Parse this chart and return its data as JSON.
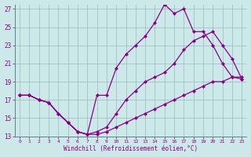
{
  "xlabel": "Windchill (Refroidissement éolien,°C)",
  "bg_color": "#cce8e8",
  "line_color": "#880088",
  "grid_color": "#99bbbb",
  "xlim": [
    -0.5,
    23.5
  ],
  "ylim": [
    13,
    27.5
  ],
  "xticks": [
    0,
    1,
    2,
    3,
    4,
    5,
    6,
    7,
    8,
    9,
    10,
    11,
    12,
    13,
    14,
    15,
    16,
    17,
    18,
    19,
    20,
    21,
    22,
    23
  ],
  "yticks": [
    13,
    15,
    17,
    19,
    21,
    23,
    25,
    27
  ],
  "line1_x": [
    0,
    1,
    2,
    3,
    4,
    5,
    6,
    7,
    8,
    9,
    10,
    11,
    12,
    13,
    14,
    15,
    16,
    17,
    18,
    19,
    20,
    21,
    22,
    23
  ],
  "line1_y": [
    17.5,
    17.5,
    17.0,
    16.7,
    15.5,
    14.5,
    13.5,
    13.2,
    17.5,
    17.5,
    20.5,
    22.0,
    23.0,
    24.0,
    25.5,
    27.5,
    26.5,
    27.0,
    24.5,
    24.5,
    23.0,
    21.0,
    19.5,
    19.3
  ],
  "line2_x": [
    0,
    1,
    2,
    3,
    4,
    5,
    6,
    7,
    8,
    9,
    10,
    11,
    12,
    13,
    14,
    15,
    16,
    17,
    18,
    19,
    20,
    21,
    22,
    23
  ],
  "line2_y": [
    17.5,
    17.5,
    17.0,
    16.7,
    15.5,
    14.5,
    13.5,
    13.2,
    13.5,
    14.0,
    15.5,
    17.0,
    18.0,
    19.0,
    19.5,
    20.0,
    21.0,
    22.5,
    23.5,
    24.0,
    24.5,
    23.0,
    21.5,
    19.3
  ],
  "line3_x": [
    0,
    1,
    2,
    3,
    4,
    5,
    6,
    7,
    8,
    9,
    10,
    11,
    12,
    13,
    14,
    15,
    16,
    17,
    18,
    19,
    20,
    21,
    22,
    23
  ],
  "line3_y": [
    17.5,
    17.5,
    17.0,
    16.7,
    15.5,
    14.5,
    13.5,
    13.2,
    13.2,
    13.5,
    14.0,
    14.5,
    15.0,
    15.5,
    16.0,
    16.5,
    17.0,
    17.5,
    18.0,
    18.5,
    19.0,
    19.0,
    19.5,
    19.5
  ]
}
